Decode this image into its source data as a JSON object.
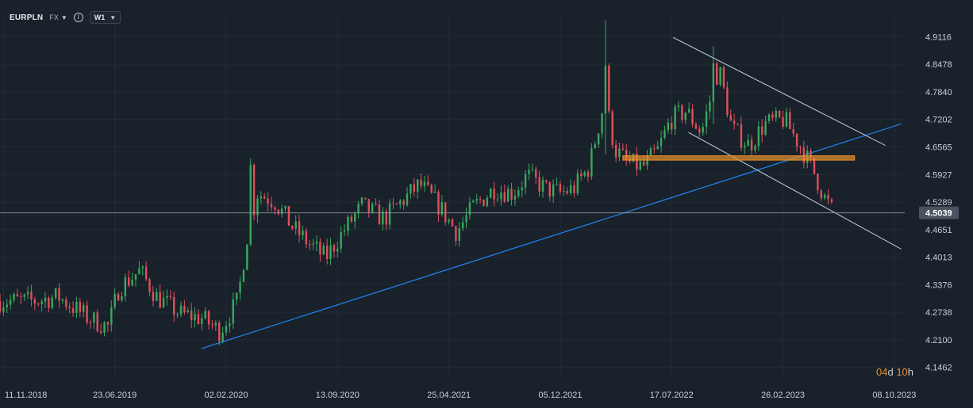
{
  "toolbar": {
    "symbol": "EURPLN",
    "market": "FX",
    "timeframe": "W1",
    "info_icon": "info-icon",
    "dropdown_icon": "caret-down-icon"
  },
  "countdown": {
    "days": "04",
    "days_unit": "d",
    "hours": "10",
    "hours_unit": "h"
  },
  "colors": {
    "background": "#19212b",
    "up": "#3aa85c",
    "down": "#e0505b",
    "trendline": "#1f80e8",
    "channel": "#b8c6d8",
    "zone": "#e8902a",
    "price_label_bg": "#4a5461"
  },
  "chart_data": {
    "type": "candlestick",
    "ylim": [
      4.12,
      4.96
    ],
    "xlim": [
      "2018-11-04",
      "2023-10-29"
    ],
    "price_ticks": [
      "4.9116",
      "4.8478",
      "4.7840",
      "4.7202",
      "4.6565",
      "4.5927",
      "4.5289",
      "4.4651",
      "4.4013",
      "4.3376",
      "4.2738",
      "4.2100",
      "4.1462"
    ],
    "date_ticks": [
      "11.11.2018",
      "23.06.2019",
      "02.02.2020",
      "13.09.2020",
      "25.04.2021",
      "05.12.2021",
      "17.07.2022",
      "26.02.2023",
      "08.10.2023"
    ],
    "last_price": "4.5039",
    "path_points": [
      [
        "2018-11-04",
        4.3
      ],
      [
        "2019-01-15",
        4.3
      ],
      [
        "2019-03-01",
        4.31
      ],
      [
        "2019-05-01",
        4.26
      ],
      [
        "2019-06-10",
        4.24
      ],
      [
        "2019-07-01",
        4.33
      ],
      [
        "2019-08-12",
        4.37
      ],
      [
        "2019-09-15",
        4.31
      ],
      [
        "2019-11-01",
        4.27
      ],
      [
        "2019-12-15",
        4.26
      ],
      [
        "2020-01-20",
        4.23
      ],
      [
        "2020-02-25",
        4.3
      ],
      [
        "2020-03-15",
        4.45
      ],
      [
        "2020-04-05",
        4.55
      ],
      [
        "2020-05-10",
        4.53
      ],
      [
        "2020-06-15",
        4.47
      ],
      [
        "2020-07-20",
        4.43
      ],
      [
        "2020-08-20",
        4.4
      ],
      [
        "2020-09-30",
        4.47
      ],
      [
        "2020-11-01",
        4.52
      ],
      [
        "2020-12-15",
        4.49
      ],
      [
        "2021-01-20",
        4.53
      ],
      [
        "2021-02-25",
        4.57
      ],
      [
        "2021-04-05",
        4.52
      ],
      [
        "2021-05-10",
        4.46
      ],
      [
        "2021-06-15",
        4.52
      ],
      [
        "2021-07-25",
        4.56
      ],
      [
        "2021-09-01",
        4.55
      ],
      [
        "2021-09-30",
        4.59
      ],
      [
        "2021-11-05",
        4.56
      ],
      [
        "2021-12-05",
        4.55
      ],
      [
        "2022-01-01",
        4.56
      ],
      [
        "2022-02-01",
        4.61
      ],
      [
        "2022-03-05",
        4.77
      ],
      [
        "2022-03-25",
        4.65
      ],
      [
        "2022-04-20",
        4.62
      ],
      [
        "2022-05-20",
        4.61
      ],
      [
        "2022-06-20",
        4.65
      ],
      [
        "2022-07-15",
        4.72
      ],
      [
        "2022-08-15",
        4.74
      ],
      [
        "2022-09-15",
        4.69
      ],
      [
        "2022-10-20",
        4.84
      ],
      [
        "2022-11-15",
        4.7
      ],
      [
        "2022-12-20",
        4.66
      ],
      [
        "2023-01-20",
        4.71
      ],
      [
        "2023-03-01",
        4.72
      ],
      [
        "2023-04-01",
        4.66
      ],
      [
        "2023-04-25",
        4.61
      ],
      [
        "2023-05-20",
        4.54
      ],
      [
        "2023-06-10",
        4.5
      ]
    ],
    "spikes": [
      {
        "date": "2020-03-22",
        "high": 4.63,
        "low": 4.5
      },
      {
        "date": "2022-03-06",
        "high": 4.95,
        "low": 4.64
      },
      {
        "date": "2022-10-10",
        "high": 4.89,
        "low": 4.71
      }
    ],
    "trendline": [
      [
        "2019-12-15",
        4.19
      ],
      [
        "2023-10-22",
        4.71
      ]
    ],
    "channel_upper": [
      [
        "2022-07-20",
        4.91
      ],
      [
        "2023-09-20",
        4.66
      ]
    ],
    "channel_lower": [
      [
        "2022-08-20",
        4.69
      ],
      [
        "2023-10-22",
        4.42
      ]
    ],
    "resistance_zone": {
      "from": "2022-04-10",
      "to": "2023-07-20",
      "low": 4.626,
      "high": 4.636
    }
  }
}
